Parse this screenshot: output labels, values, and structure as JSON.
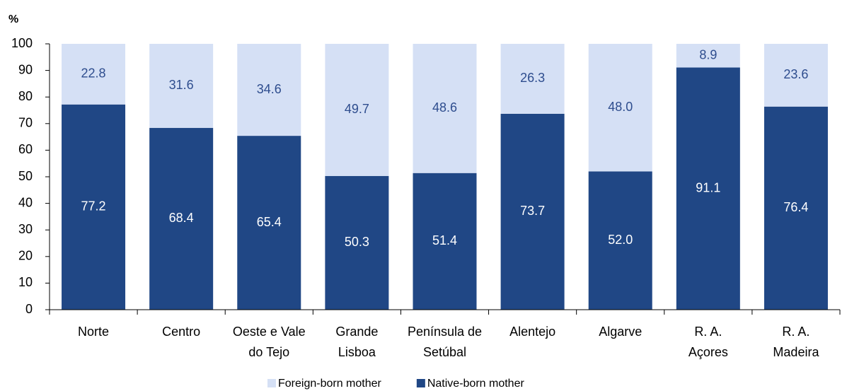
{
  "chart_data": {
    "type": "stacked_bar",
    "y_label": "%",
    "categories": [
      "Norte",
      "Centro",
      "Oeste e Vale\ndo Tejo",
      "Grande\nLisboa",
      "Península de\nSetúbal",
      "Alentejo",
      "Algarve",
      "R. A.\nAçores",
      "R. A.\nMadeira"
    ],
    "series": [
      {
        "name": "Foreign-born mother",
        "color": "#d5e0f5",
        "label_color": "#2e4d8e",
        "values": [
          22.8,
          31.6,
          34.6,
          49.7,
          48.6,
          26.3,
          48.0,
          8.9,
          23.6
        ],
        "value_labels": [
          "22.8",
          "31.6",
          "34.6",
          "49.7",
          "48.6",
          "26.3",
          "48.0",
          "8.9",
          "23.6"
        ]
      },
      {
        "name": "Native-born mother",
        "color": "#204785",
        "label_color": "#ffffff",
        "values": [
          77.2,
          68.4,
          65.4,
          50.3,
          51.4,
          73.7,
          52.0,
          91.1,
          76.4
        ],
        "value_labels": [
          "77.2",
          "68.4",
          "65.4",
          "50.3",
          "51.4",
          "73.7",
          "52.0",
          "91.1",
          "76.4"
        ]
      }
    ],
    "ylim": [
      0,
      100
    ],
    "yticks": [
      0,
      10,
      20,
      30,
      40,
      50,
      60,
      70,
      80,
      90,
      100
    ],
    "legend": "bottom"
  }
}
